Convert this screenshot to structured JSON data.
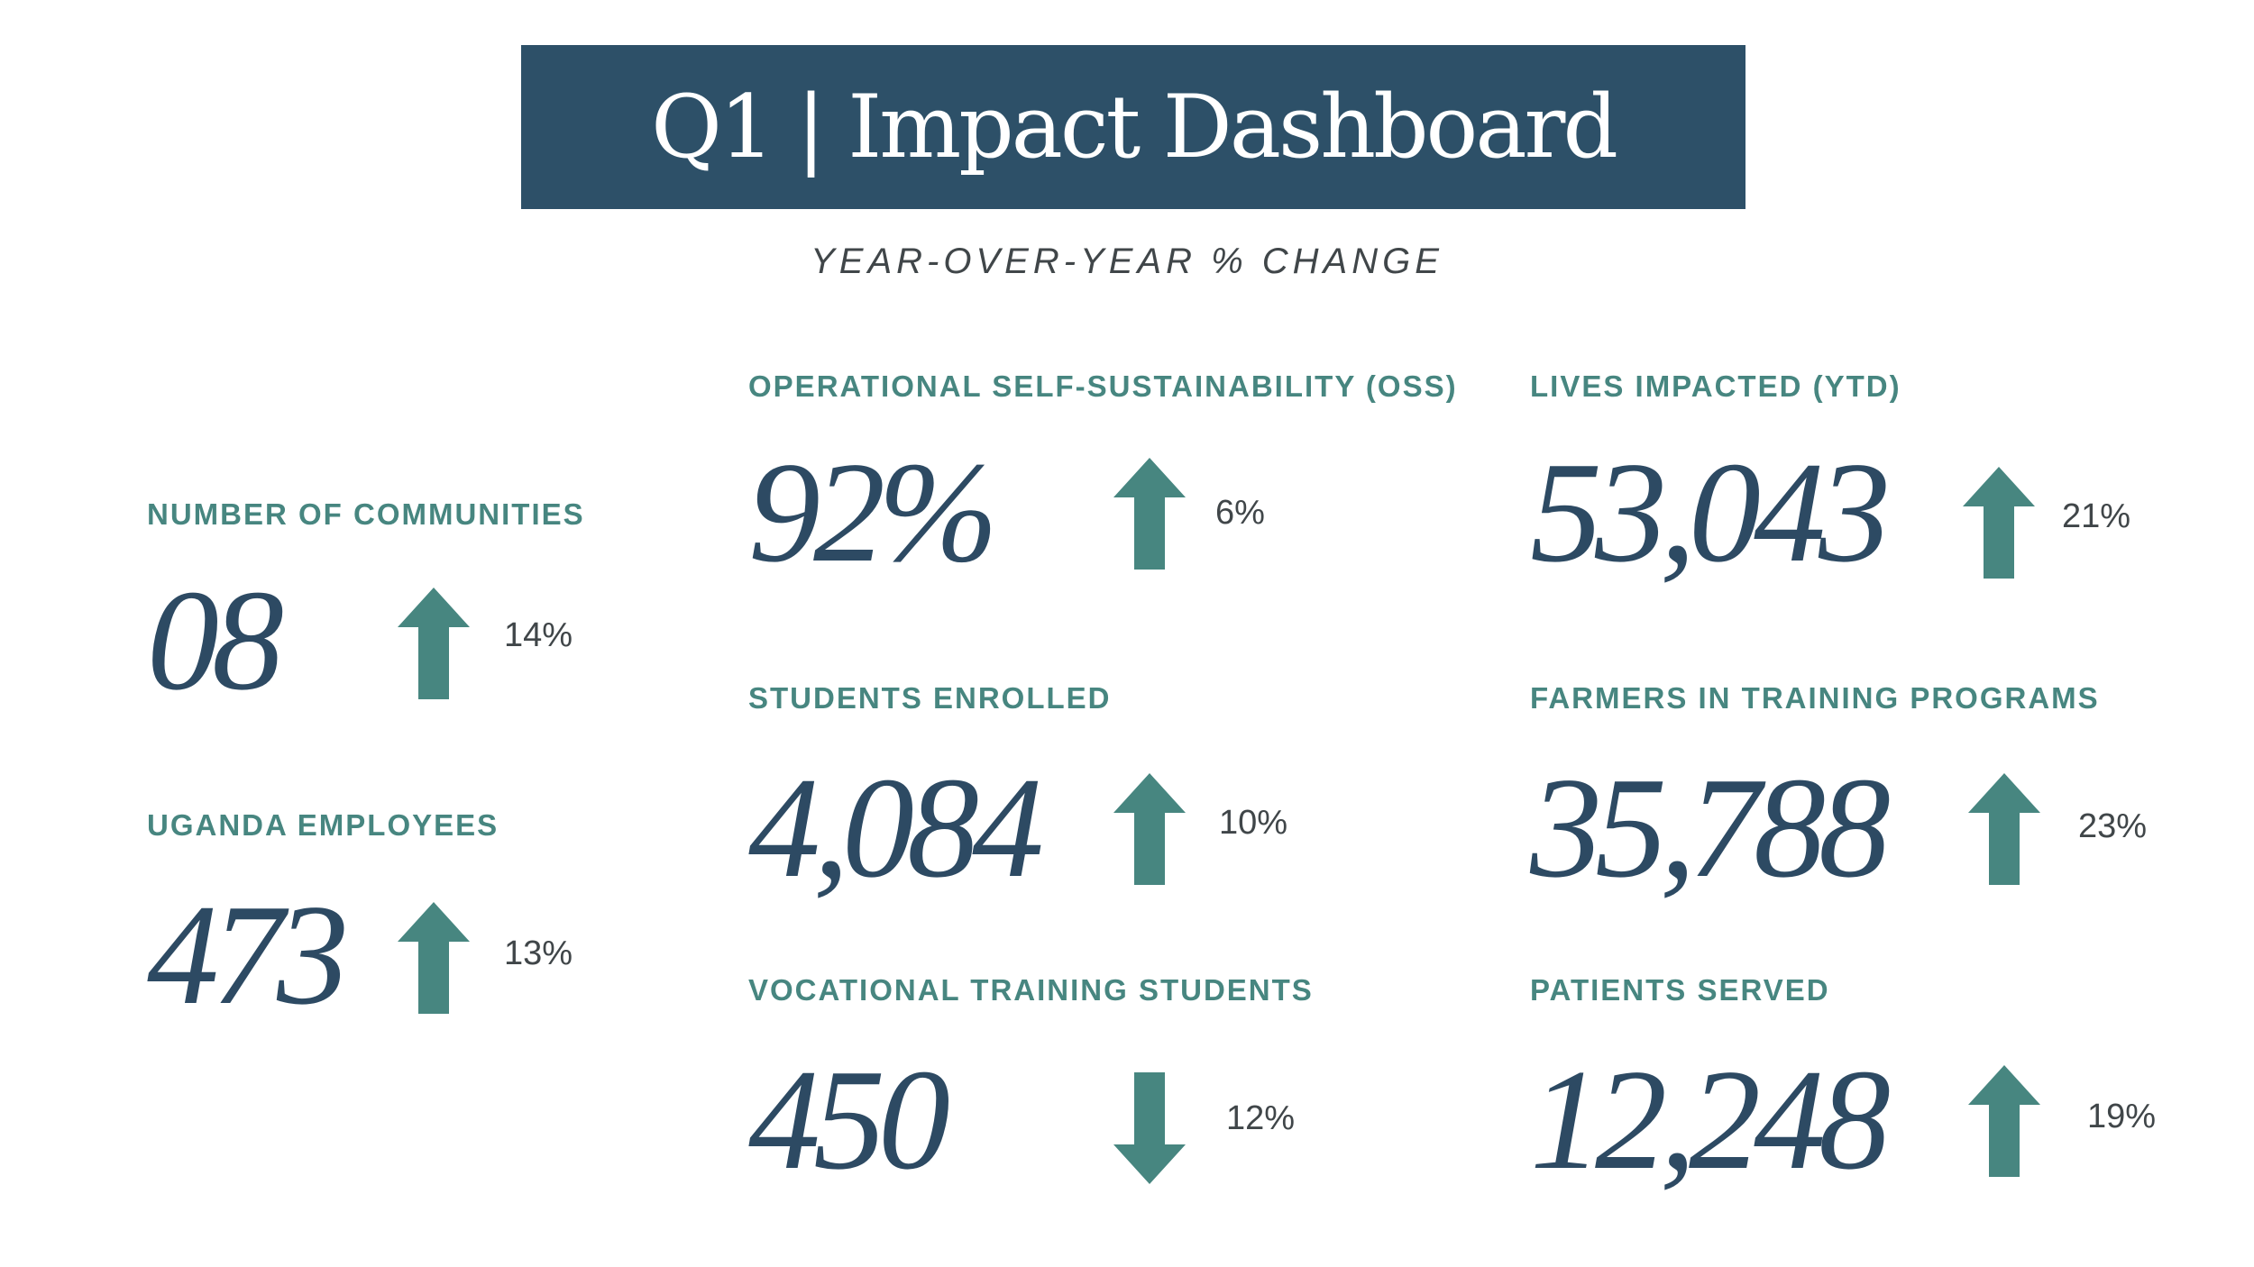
{
  "header": {
    "title": "Q1 | Impact Dashboard",
    "subtitle": "YEAR-OVER-YEAR % CHANGE"
  },
  "colors": {
    "banner": "#2d5068",
    "label": "#478680",
    "value": "#2d4a63",
    "arrow": "#478680",
    "pct_text": "#404649"
  },
  "metrics": {
    "communities": {
      "label": "NUMBER OF COMMUNITIES",
      "value": "08",
      "change": "14%",
      "direction": "up",
      "icon": "arrow-up-icon"
    },
    "employees": {
      "label": "UGANDA EMPLOYEES",
      "value": "473",
      "change": "13%",
      "direction": "up",
      "icon": "arrow-up-icon"
    },
    "oss": {
      "label": "OPERATIONAL SELF-SUSTAINABILITY (OSS)",
      "value": "92%",
      "change": "6%",
      "direction": "up",
      "icon": "arrow-up-icon"
    },
    "students": {
      "label": "STUDENTS ENROLLED",
      "value": "4,084",
      "change": "10%",
      "direction": "up",
      "icon": "arrow-up-icon"
    },
    "vocational": {
      "label": "VOCATIONAL TRAINING STUDENTS",
      "value": "450",
      "change": "12%",
      "direction": "down",
      "icon": "arrow-down-icon"
    },
    "lives": {
      "label": "LIVES IMPACTED (YTD)",
      "value": "53,043",
      "change": "21%",
      "direction": "up",
      "icon": "arrow-up-icon"
    },
    "farmers": {
      "label": "FARMERS IN TRAINING PROGRAMS",
      "value": "35,788",
      "change": "23%",
      "direction": "up",
      "icon": "arrow-up-icon"
    },
    "patients": {
      "label": "PATIENTS SERVED",
      "value": "12,248",
      "change": "19%",
      "direction": "up",
      "icon": "arrow-up-icon"
    }
  }
}
